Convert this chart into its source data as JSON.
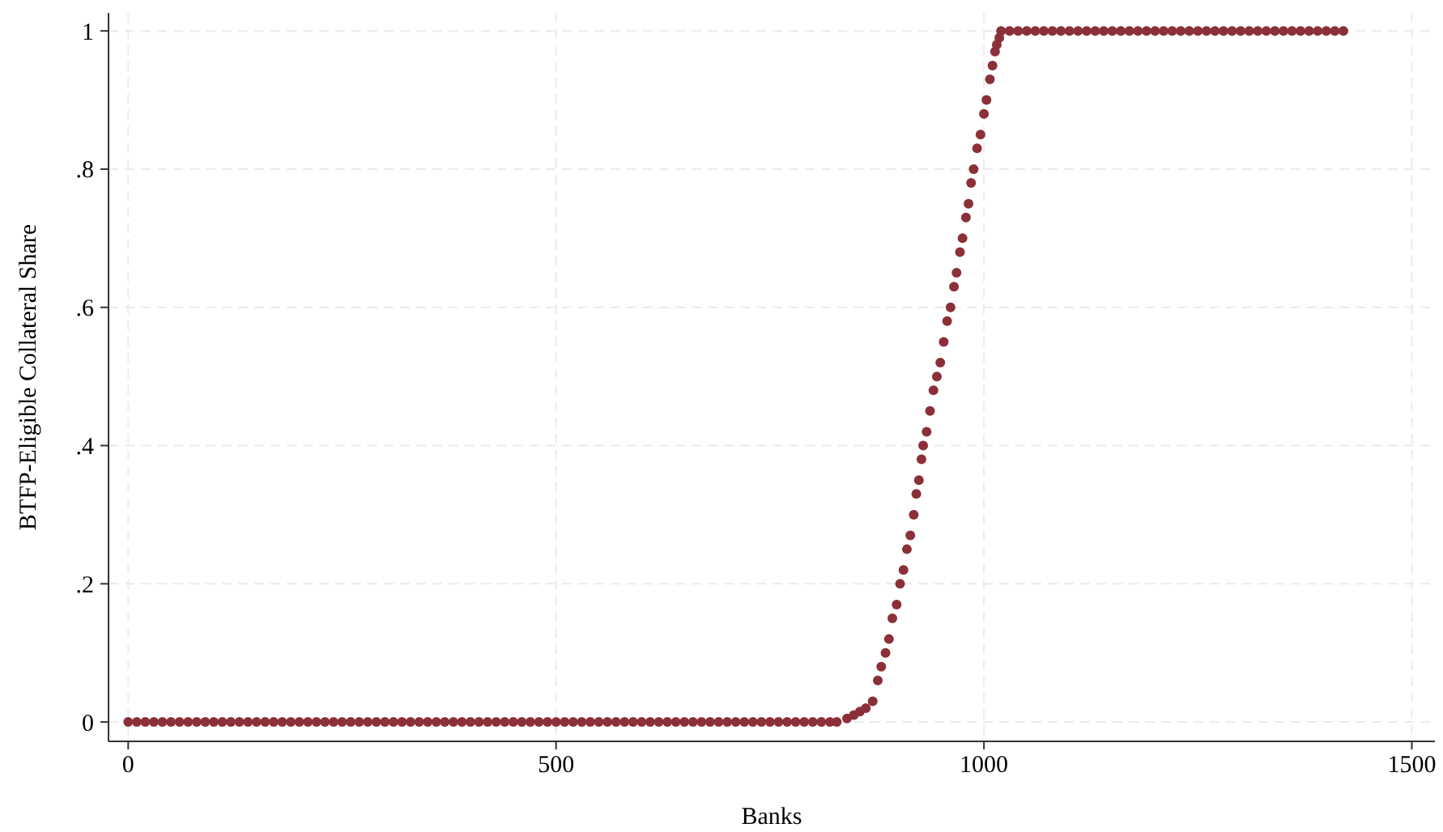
{
  "chart_data": {
    "type": "scatter",
    "xlabel": "Banks",
    "ylabel": "BTFP-Eligible Collateral Share",
    "xlim": [
      -23,
      1527
    ],
    "ylim": [
      -0.028,
      1.026
    ],
    "xticks": [
      0,
      500,
      1000,
      1500
    ],
    "yticks": [
      0,
      {
        "value": 0.2,
        "label": ".2"
      },
      {
        "value": 0.4,
        "label": ".4"
      },
      {
        "value": 0.6,
        "label": ".6"
      },
      {
        "value": 0.8,
        "label": ".8"
      },
      1
    ],
    "grid": true,
    "marker": "circle",
    "series": [
      {
        "color": "#8b3038",
        "x": [
          0,
          10,
          20,
          30,
          40,
          50,
          60,
          70,
          80,
          90,
          100,
          110,
          120,
          130,
          140,
          150,
          160,
          170,
          180,
          190,
          200,
          210,
          220,
          230,
          240,
          250,
          260,
          270,
          280,
          290,
          300,
          310,
          320,
          330,
          340,
          350,
          360,
          370,
          380,
          390,
          400,
          410,
          420,
          430,
          440,
          450,
          460,
          470,
          480,
          490,
          500,
          510,
          520,
          530,
          540,
          550,
          560,
          570,
          580,
          590,
          600,
          610,
          620,
          630,
          640,
          650,
          660,
          670,
          680,
          690,
          700,
          710,
          720,
          730,
          740,
          750,
          760,
          770,
          780,
          790,
          800,
          810,
          820,
          828,
          840,
          848,
          855,
          862,
          870,
          876,
          880,
          885,
          889,
          893,
          898,
          902,
          906,
          910,
          914,
          918,
          921,
          924,
          927,
          929,
          933,
          937,
          941,
          945,
          949,
          953,
          957,
          961,
          965,
          968,
          972,
          975,
          979,
          982,
          985,
          988,
          992,
          996,
          1000,
          1003,
          1007,
          1010,
          1013,
          1015,
          1018,
          1020,
          1030,
          1040,
          1050,
          1060,
          1070,
          1080,
          1090,
          1100,
          1110,
          1120,
          1130,
          1140,
          1150,
          1160,
          1170,
          1180,
          1190,
          1200,
          1210,
          1220,
          1230,
          1240,
          1250,
          1260,
          1270,
          1280,
          1290,
          1300,
          1310,
          1320,
          1330,
          1340,
          1350,
          1360,
          1370,
          1380,
          1390,
          1400,
          1410,
          1420
        ],
        "values": [
          0,
          0,
          0,
          0,
          0,
          0,
          0,
          0,
          0,
          0,
          0,
          0,
          0,
          0,
          0,
          0,
          0,
          0,
          0,
          0,
          0,
          0,
          0,
          0,
          0,
          0,
          0,
          0,
          0,
          0,
          0,
          0,
          0,
          0,
          0,
          0,
          0,
          0,
          0,
          0,
          0,
          0,
          0,
          0,
          0,
          0,
          0,
          0,
          0,
          0,
          0,
          0,
          0,
          0,
          0,
          0,
          0,
          0,
          0,
          0,
          0,
          0,
          0,
          0,
          0,
          0,
          0,
          0,
          0,
          0,
          0,
          0,
          0,
          0,
          0,
          0,
          0,
          0,
          0,
          0,
          0,
          0,
          0,
          0,
          0.005,
          0.01,
          0.015,
          0.02,
          0.03,
          0.06,
          0.08,
          0.1,
          0.12,
          0.15,
          0.17,
          0.2,
          0.22,
          0.25,
          0.27,
          0.3,
          0.33,
          0.35,
          0.38,
          0.4,
          0.42,
          0.45,
          0.48,
          0.5,
          0.52,
          0.55,
          0.58,
          0.6,
          0.63,
          0.65,
          0.68,
          0.7,
          0.73,
          0.75,
          0.78,
          0.8,
          0.83,
          0.85,
          0.88,
          0.9,
          0.93,
          0.95,
          0.97,
          0.98,
          0.99,
          1,
          1,
          1,
          1,
          1,
          1,
          1,
          1,
          1,
          1,
          1,
          1,
          1,
          1,
          1,
          1,
          1,
          1,
          1,
          1,
          1,
          1,
          1,
          1,
          1,
          1,
          1,
          1,
          1,
          1,
          1,
          1,
          1,
          1,
          1,
          1,
          1,
          1,
          1,
          1,
          1
        ]
      }
    ]
  }
}
